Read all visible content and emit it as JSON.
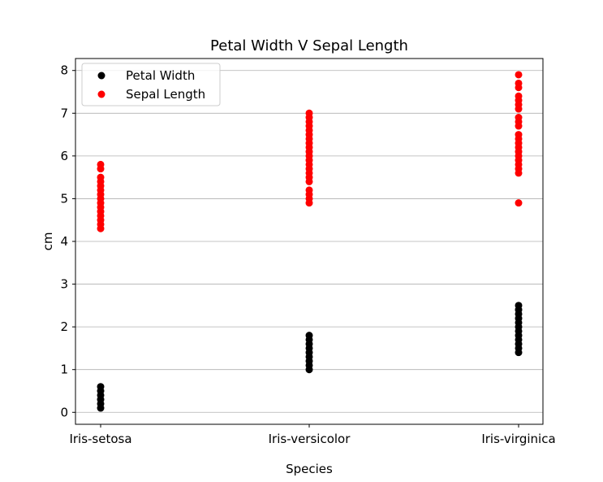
{
  "chart_data": {
    "type": "scatter",
    "title": "Petal Width V Sepal Length",
    "xlabel": "Species",
    "ylabel": "cm",
    "categories": [
      "Iris-setosa",
      "Iris-versicolor",
      "Iris-virginica"
    ],
    "ylim": [
      -0.28,
      8.28
    ],
    "yticks": [
      0,
      1,
      2,
      3,
      4,
      5,
      6,
      7,
      8
    ],
    "grid": "y",
    "legend_position": "top-left",
    "series": [
      {
        "name": "Petal Width",
        "color": "#000000",
        "points": [
          {
            "x": "Iris-setosa",
            "y": 0.1
          },
          {
            "x": "Iris-setosa",
            "y": 0.2
          },
          {
            "x": "Iris-setosa",
            "y": 0.3
          },
          {
            "x": "Iris-setosa",
            "y": 0.4
          },
          {
            "x": "Iris-setosa",
            "y": 0.5
          },
          {
            "x": "Iris-setosa",
            "y": 0.6
          },
          {
            "x": "Iris-versicolor",
            "y": 1.0
          },
          {
            "x": "Iris-versicolor",
            "y": 1.1
          },
          {
            "x": "Iris-versicolor",
            "y": 1.2
          },
          {
            "x": "Iris-versicolor",
            "y": 1.3
          },
          {
            "x": "Iris-versicolor",
            "y": 1.4
          },
          {
            "x": "Iris-versicolor",
            "y": 1.5
          },
          {
            "x": "Iris-versicolor",
            "y": 1.6
          },
          {
            "x": "Iris-versicolor",
            "y": 1.7
          },
          {
            "x": "Iris-versicolor",
            "y": 1.8
          },
          {
            "x": "Iris-virginica",
            "y": 1.4
          },
          {
            "x": "Iris-virginica",
            "y": 1.5
          },
          {
            "x": "Iris-virginica",
            "y": 1.6
          },
          {
            "x": "Iris-virginica",
            "y": 1.7
          },
          {
            "x": "Iris-virginica",
            "y": 1.8
          },
          {
            "x": "Iris-virginica",
            "y": 1.9
          },
          {
            "x": "Iris-virginica",
            "y": 2.0
          },
          {
            "x": "Iris-virginica",
            "y": 2.1
          },
          {
            "x": "Iris-virginica",
            "y": 2.2
          },
          {
            "x": "Iris-virginica",
            "y": 2.3
          },
          {
            "x": "Iris-virginica",
            "y": 2.4
          },
          {
            "x": "Iris-virginica",
            "y": 2.5
          }
        ]
      },
      {
        "name": "Sepal Length",
        "color": "#ff0000",
        "points": [
          {
            "x": "Iris-setosa",
            "y": 4.3
          },
          {
            "x": "Iris-setosa",
            "y": 4.4
          },
          {
            "x": "Iris-setosa",
            "y": 4.5
          },
          {
            "x": "Iris-setosa",
            "y": 4.6
          },
          {
            "x": "Iris-setosa",
            "y": 4.7
          },
          {
            "x": "Iris-setosa",
            "y": 4.8
          },
          {
            "x": "Iris-setosa",
            "y": 4.9
          },
          {
            "x": "Iris-setosa",
            "y": 5.0
          },
          {
            "x": "Iris-setosa",
            "y": 5.1
          },
          {
            "x": "Iris-setosa",
            "y": 5.2
          },
          {
            "x": "Iris-setosa",
            "y": 5.3
          },
          {
            "x": "Iris-setosa",
            "y": 5.4
          },
          {
            "x": "Iris-setosa",
            "y": 5.5
          },
          {
            "x": "Iris-setosa",
            "y": 5.7
          },
          {
            "x": "Iris-setosa",
            "y": 5.8
          },
          {
            "x": "Iris-versicolor",
            "y": 4.9
          },
          {
            "x": "Iris-versicolor",
            "y": 5.0
          },
          {
            "x": "Iris-versicolor",
            "y": 5.1
          },
          {
            "x": "Iris-versicolor",
            "y": 5.2
          },
          {
            "x": "Iris-versicolor",
            "y": 5.4
          },
          {
            "x": "Iris-versicolor",
            "y": 5.5
          },
          {
            "x": "Iris-versicolor",
            "y": 5.6
          },
          {
            "x": "Iris-versicolor",
            "y": 5.7
          },
          {
            "x": "Iris-versicolor",
            "y": 5.8
          },
          {
            "x": "Iris-versicolor",
            "y": 5.9
          },
          {
            "x": "Iris-versicolor",
            "y": 6.0
          },
          {
            "x": "Iris-versicolor",
            "y": 6.1
          },
          {
            "x": "Iris-versicolor",
            "y": 6.2
          },
          {
            "x": "Iris-versicolor",
            "y": 6.3
          },
          {
            "x": "Iris-versicolor",
            "y": 6.4
          },
          {
            "x": "Iris-versicolor",
            "y": 6.5
          },
          {
            "x": "Iris-versicolor",
            "y": 6.6
          },
          {
            "x": "Iris-versicolor",
            "y": 6.7
          },
          {
            "x": "Iris-versicolor",
            "y": 6.8
          },
          {
            "x": "Iris-versicolor",
            "y": 6.9
          },
          {
            "x": "Iris-versicolor",
            "y": 7.0
          },
          {
            "x": "Iris-virginica",
            "y": 4.9
          },
          {
            "x": "Iris-virginica",
            "y": 5.6
          },
          {
            "x": "Iris-virginica",
            "y": 5.7
          },
          {
            "x": "Iris-virginica",
            "y": 5.8
          },
          {
            "x": "Iris-virginica",
            "y": 5.9
          },
          {
            "x": "Iris-virginica",
            "y": 6.0
          },
          {
            "x": "Iris-virginica",
            "y": 6.1
          },
          {
            "x": "Iris-virginica",
            "y": 6.2
          },
          {
            "x": "Iris-virginica",
            "y": 6.3
          },
          {
            "x": "Iris-virginica",
            "y": 6.4
          },
          {
            "x": "Iris-virginica",
            "y": 6.5
          },
          {
            "x": "Iris-virginica",
            "y": 6.7
          },
          {
            "x": "Iris-virginica",
            "y": 6.8
          },
          {
            "x": "Iris-virginica",
            "y": 6.9
          },
          {
            "x": "Iris-virginica",
            "y": 7.1
          },
          {
            "x": "Iris-virginica",
            "y": 7.2
          },
          {
            "x": "Iris-virginica",
            "y": 7.3
          },
          {
            "x": "Iris-virginica",
            "y": 7.4
          },
          {
            "x": "Iris-virginica",
            "y": 7.6
          },
          {
            "x": "Iris-virginica",
            "y": 7.7
          },
          {
            "x": "Iris-virginica",
            "y": 7.9
          }
        ]
      }
    ]
  }
}
